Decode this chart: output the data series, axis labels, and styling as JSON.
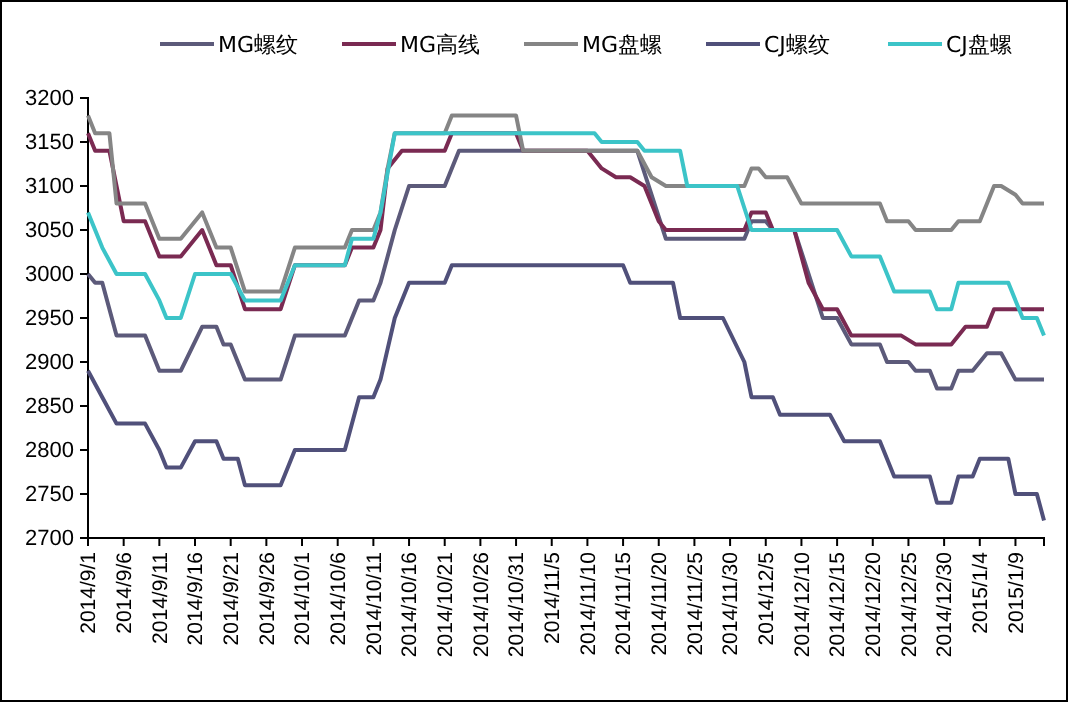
{
  "chart_data": {
    "type": "line",
    "legend": "top",
    "grid": false,
    "ylim": [
      2700,
      3200
    ],
    "yticks": [
      2700,
      2750,
      2800,
      2850,
      2900,
      2950,
      3000,
      3050,
      3100,
      3150,
      3200
    ],
    "xlim": [
      "2014-09-01",
      "2015-01-13"
    ],
    "xticks": [
      {
        "value": "2014-09-01",
        "label": "2014/9/1"
      },
      {
        "value": "2014-09-06",
        "label": "2014/9/6"
      },
      {
        "value": "2014-09-11",
        "label": "2014/9/11"
      },
      {
        "value": "2014-09-16",
        "label": "2014/9/16"
      },
      {
        "value": "2014-09-21",
        "label": "2014/9/21"
      },
      {
        "value": "2014-09-26",
        "label": "2014/9/26"
      },
      {
        "value": "2014-10-01",
        "label": "2014/10/1"
      },
      {
        "value": "2014-10-06",
        "label": "2014/10/6"
      },
      {
        "value": "2014-10-11",
        "label": "2014/10/11"
      },
      {
        "value": "2014-10-16",
        "label": "2014/10/16"
      },
      {
        "value": "2014-10-21",
        "label": "2014/10/21"
      },
      {
        "value": "2014-10-26",
        "label": "2014/10/26"
      },
      {
        "value": "2014-10-31",
        "label": "2014/10/31"
      },
      {
        "value": "2014-11-05",
        "label": "2014/11/5"
      },
      {
        "value": "2014-11-10",
        "label": "2014/11/10"
      },
      {
        "value": "2014-11-15",
        "label": "2014/11/15"
      },
      {
        "value": "2014-11-20",
        "label": "2014/11/20"
      },
      {
        "value": "2014-11-25",
        "label": "2014/11/25"
      },
      {
        "value": "2014-11-30",
        "label": "2014/11/30"
      },
      {
        "value": "2014-12-05",
        "label": "2014/12/5"
      },
      {
        "value": "2014-12-10",
        "label": "2014/12/10"
      },
      {
        "value": "2014-12-15",
        "label": "2014/12/15"
      },
      {
        "value": "2014-12-20",
        "label": "2014/12/20"
      },
      {
        "value": "2014-12-25",
        "label": "2014/12/25"
      },
      {
        "value": "2014-12-30",
        "label": "2014/12/30"
      },
      {
        "value": "2015-01-04",
        "label": "2015/1/4"
      },
      {
        "value": "2015-01-09",
        "label": "2015/1/9"
      }
    ],
    "series": [
      {
        "name": "MG螺纹",
        "color": "#5c5a7a",
        "x": [
          "2014-09-01",
          "2014-09-02",
          "2014-09-03",
          "2014-09-05",
          "2014-09-09",
          "2014-09-11",
          "2014-09-14",
          "2014-09-17",
          "2014-09-19",
          "2014-09-20",
          "2014-09-21",
          "2014-09-23",
          "2014-09-28",
          "2014-09-30",
          "2014-10-07",
          "2014-10-09",
          "2014-10-11",
          "2014-10-12",
          "2014-10-14",
          "2014-10-16",
          "2014-10-21",
          "2014-10-23",
          "2014-11-17",
          "2014-11-21",
          "2014-12-02",
          "2014-12-03",
          "2014-12-05",
          "2014-12-06",
          "2014-12-09",
          "2014-12-13",
          "2014-12-15",
          "2014-12-17",
          "2014-12-21",
          "2014-12-22",
          "2014-12-25",
          "2014-12-26",
          "2014-12-28",
          "2014-12-29",
          "2014-12-31",
          "2015-01-01",
          "2015-01-03",
          "2015-01-05",
          "2015-01-07",
          "2015-01-09",
          "2015-01-13"
        ],
        "values": [
          3000,
          2990,
          2990,
          2930,
          2930,
          2890,
          2890,
          2940,
          2940,
          2920,
          2920,
          2880,
          2880,
          2930,
          2930,
          2970,
          2970,
          2990,
          3050,
          3100,
          3100,
          3140,
          3140,
          3040,
          3040,
          3060,
          3060,
          3050,
          3050,
          2950,
          2950,
          2920,
          2920,
          2900,
          2900,
          2890,
          2890,
          2870,
          2870,
          2890,
          2890,
          2910,
          2910,
          2880,
          2880
        ]
      },
      {
        "name": "MG高线",
        "color": "#7a2a52",
        "x": [
          "2014-09-01",
          "2014-09-02",
          "2014-09-04",
          "2014-09-06",
          "2014-09-09",
          "2014-09-11",
          "2014-09-14",
          "2014-09-17",
          "2014-09-19",
          "2014-09-21",
          "2014-09-23",
          "2014-09-28",
          "2014-09-30",
          "2014-10-07",
          "2014-10-08",
          "2014-10-11",
          "2014-10-12",
          "2014-10-13",
          "2014-10-15",
          "2014-10-21",
          "2014-10-22",
          "2014-10-31",
          "2014-11-01",
          "2014-11-10",
          "2014-11-12",
          "2014-11-14",
          "2014-11-16",
          "2014-11-18",
          "2014-11-20",
          "2014-11-21",
          "2014-12-02",
          "2014-12-03",
          "2014-12-05",
          "2014-12-06",
          "2014-12-09",
          "2014-12-11",
          "2014-12-13",
          "2014-12-15",
          "2014-12-17",
          "2014-12-24",
          "2014-12-26",
          "2014-12-31",
          "2015-01-02",
          "2015-01-05",
          "2015-01-06",
          "2015-01-13"
        ],
        "values": [
          3160,
          3140,
          3140,
          3060,
          3060,
          3020,
          3020,
          3050,
          3010,
          3010,
          2960,
          2960,
          3010,
          3010,
          3030,
          3030,
          3050,
          3120,
          3140,
          3140,
          3160,
          3160,
          3140,
          3140,
          3120,
          3110,
          3110,
          3100,
          3060,
          3050,
          3050,
          3070,
          3070,
          3050,
          3050,
          2990,
          2960,
          2960,
          2930,
          2930,
          2920,
          2920,
          2940,
          2940,
          2960,
          2960
        ]
      },
      {
        "name": "MG盘螺",
        "color": "#858585",
        "x": [
          "2014-09-01",
          "2014-09-02",
          "2014-09-04",
          "2014-09-05",
          "2014-09-09",
          "2014-09-11",
          "2014-09-14",
          "2014-09-16",
          "2014-09-17",
          "2014-09-19",
          "2014-09-21",
          "2014-09-23",
          "2014-09-28",
          "2014-09-30",
          "2014-10-07",
          "2014-10-08",
          "2014-10-11",
          "2014-10-12",
          "2014-10-13",
          "2014-10-14",
          "2014-10-21",
          "2014-10-22",
          "2014-10-31",
          "2014-11-01",
          "2014-11-17",
          "2014-11-19",
          "2014-11-21",
          "2014-12-02",
          "2014-12-03",
          "2014-12-04",
          "2014-12-05",
          "2014-12-08",
          "2014-12-10",
          "2014-12-21",
          "2014-12-22",
          "2014-12-25",
          "2014-12-26",
          "2014-12-31",
          "2015-01-01",
          "2015-01-04",
          "2015-01-06",
          "2015-01-07",
          "2015-01-09",
          "2015-01-10",
          "2015-01-13"
        ],
        "values": [
          3180,
          3160,
          3160,
          3080,
          3080,
          3040,
          3040,
          3060,
          3070,
          3030,
          3030,
          2980,
          2980,
          3030,
          3030,
          3050,
          3050,
          3070,
          3120,
          3160,
          3160,
          3180,
          3180,
          3140,
          3140,
          3110,
          3100,
          3100,
          3120,
          3120,
          3110,
          3110,
          3080,
          3080,
          3060,
          3060,
          3050,
          3050,
          3060,
          3060,
          3100,
          3100,
          3090,
          3080,
          3080
        ]
      },
      {
        "name": "CJ螺纹",
        "color": "#50507a",
        "x": [
          "2014-09-01",
          "2014-09-03",
          "2014-09-05",
          "2014-09-09",
          "2014-09-11",
          "2014-09-12",
          "2014-09-14",
          "2014-09-16",
          "2014-09-19",
          "2014-09-20",
          "2014-09-22",
          "2014-09-23",
          "2014-09-28",
          "2014-09-30",
          "2014-10-07",
          "2014-10-09",
          "2014-10-11",
          "2014-10-12",
          "2014-10-14",
          "2014-10-16",
          "2014-10-21",
          "2014-10-22",
          "2014-11-15",
          "2014-11-16",
          "2014-11-22",
          "2014-11-23",
          "2014-11-29",
          "2014-12-02",
          "2014-12-03",
          "2014-12-06",
          "2014-12-07",
          "2014-12-14",
          "2014-12-16",
          "2014-12-21",
          "2014-12-23",
          "2014-12-28",
          "2014-12-29",
          "2014-12-31",
          "2015-01-01",
          "2015-01-03",
          "2015-01-04",
          "2015-01-08",
          "2015-01-09",
          "2015-01-12",
          "2015-01-13"
        ],
        "values": [
          2890,
          2860,
          2830,
          2830,
          2800,
          2780,
          2780,
          2810,
          2810,
          2790,
          2790,
          2760,
          2760,
          2800,
          2800,
          2860,
          2860,
          2880,
          2950,
          2990,
          2990,
          3010,
          3010,
          2990,
          2990,
          2950,
          2950,
          2900,
          2860,
          2860,
          2840,
          2840,
          2810,
          2810,
          2770,
          2770,
          2740,
          2740,
          2770,
          2770,
          2790,
          2790,
          2750,
          2750,
          2720
        ]
      },
      {
        "name": "CJ盘螺",
        "color": "#3cc4c8",
        "x": [
          "2014-09-01",
          "2014-09-03",
          "2014-09-05",
          "2014-09-09",
          "2014-09-11",
          "2014-09-12",
          "2014-09-14",
          "2014-09-16",
          "2014-09-21",
          "2014-09-23",
          "2014-09-28",
          "2014-09-30",
          "2014-10-07",
          "2014-10-08",
          "2014-10-11",
          "2014-10-12",
          "2014-10-14",
          "2014-11-11",
          "2014-11-12",
          "2014-11-17",
          "2014-11-18",
          "2014-11-23",
          "2014-11-24",
          "2014-12-01",
          "2014-12-03",
          "2014-12-15",
          "2014-12-17",
          "2014-12-21",
          "2014-12-23",
          "2014-12-28",
          "2014-12-29",
          "2014-12-31",
          "2015-01-01",
          "2015-01-08",
          "2015-01-10",
          "2015-01-12",
          "2015-01-13"
        ],
        "values": [
          3070,
          3030,
          3000,
          3000,
          2970,
          2950,
          2950,
          3000,
          3000,
          2970,
          2970,
          3010,
          3010,
          3040,
          3040,
          3070,
          3160,
          3160,
          3150,
          3150,
          3140,
          3140,
          3100,
          3100,
          3050,
          3050,
          3020,
          3020,
          2980,
          2980,
          2960,
          2960,
          2990,
          2990,
          2950,
          2950,
          2930
        ]
      }
    ]
  }
}
